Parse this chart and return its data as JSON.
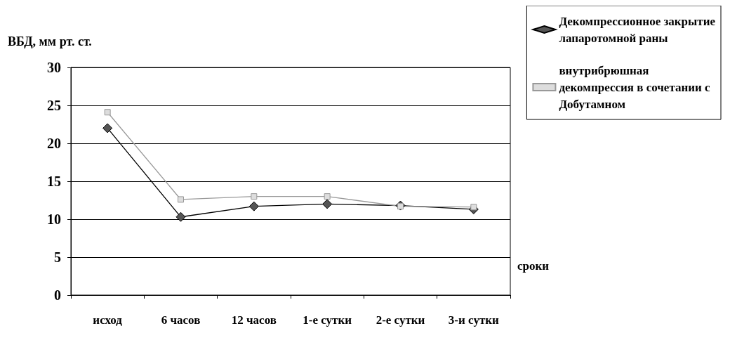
{
  "chart_data": {
    "type": "line",
    "ylabel": "ВБД, мм рт. ст.",
    "xlabel": "сроки",
    "categories": [
      "исход",
      "6 часов",
      "12 часов",
      "1-е сутки",
      "2-е сутки",
      "3-и сутки"
    ],
    "series": [
      {
        "name": "Декомпрессионное закрытие лапаротомной раны",
        "color": "#000000",
        "marker": "diamond",
        "values": [
          22,
          10.3,
          11.7,
          12.0,
          11.8,
          11.3
        ]
      },
      {
        "name": "внутрибрюшная декомпрессия в сочетании с Добутамном",
        "color": "#999999",
        "marker": "square",
        "values": [
          24.1,
          12.6,
          13.0,
          13.0,
          11.7,
          11.6
        ]
      }
    ],
    "ylim": [
      0,
      30
    ],
    "yticks": [
      0,
      5,
      10,
      15,
      20,
      25,
      30
    ],
    "grid": "y",
    "legend": "top right"
  }
}
